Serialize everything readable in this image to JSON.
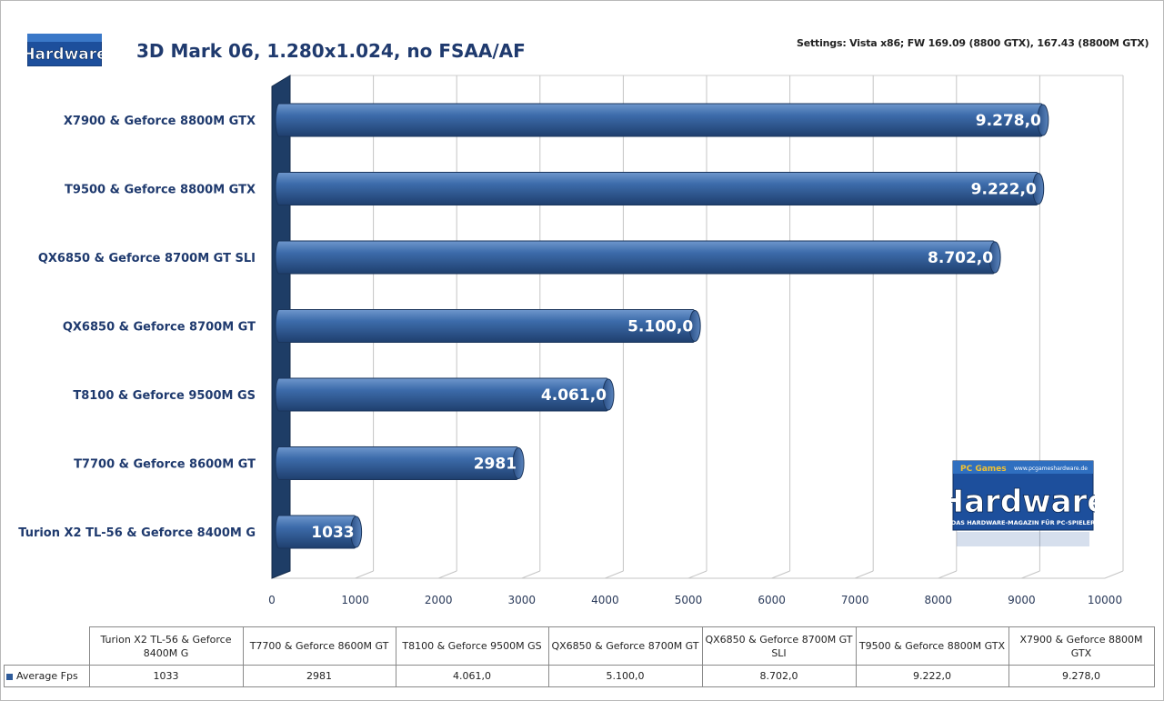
{
  "title": "3D Mark 06, 1.280x1.024, no FSAA/AF",
  "settings": "Settings: Vista x86; FW 169.09 (8800 GTX), 167.43 (8800M GTX)",
  "logo_small_text": "Hardware",
  "logo_big": {
    "url": "www.pcgameshardware.de",
    "brand_small": "PC Games",
    "brand": "Hardware",
    "tagline": "DAS HARDWARE-MAGAZIN FÜR PC-SPIELER"
  },
  "colors": {
    "bar": "#3a6aa8",
    "bar_dark": "#1f3f6e",
    "grid": "#bdbdbd",
    "text": "#1f3a6e"
  },
  "chart_data": {
    "type": "bar",
    "orientation": "horizontal",
    "categories": [
      "X7900  & Geforce 8800M  GTX",
      "T9500  & Geforce 8800M  GTX",
      "QX6850  & Geforce 8700M  GT SLI",
      "QX6850  & Geforce 8700M  GT",
      "T8100  & Geforce 9500M  GS",
      "T7700  & Geforce 8600M  GT",
      "Turion X2  TL-56  & Geforce 8400M  G"
    ],
    "values": [
      9278,
      9222,
      8702,
      5100,
      4061,
      2981,
      1033
    ],
    "labels": [
      "9.278,0",
      "9.222,0",
      "8.702,0",
      "5.100,0",
      "4.061,0",
      "2981",
      "1033"
    ],
    "xlim": [
      0,
      10000
    ],
    "ticks": [
      "0",
      "1000",
      "2000",
      "3000",
      "4000",
      "5000",
      "6000",
      "7000",
      "8000",
      "9000",
      "10000"
    ],
    "grid": true
  },
  "table": {
    "series_label": "Average Fps",
    "columns": [
      "Turion X2 TL-56 & Geforce 8400M G",
      "T7700 & Geforce 8600M GT",
      "T8100 & Geforce 9500M GS",
      "QX6850 & Geforce 8700M GT",
      "QX6850 & Geforce 8700M GT SLI",
      "T9500 & Geforce 8800M GTX",
      "X7900 & Geforce 8800M GTX"
    ],
    "values": [
      "1033",
      "2981",
      "4.061,0",
      "5.100,0",
      "8.702,0",
      "9.222,0",
      "9.278,0"
    ]
  }
}
